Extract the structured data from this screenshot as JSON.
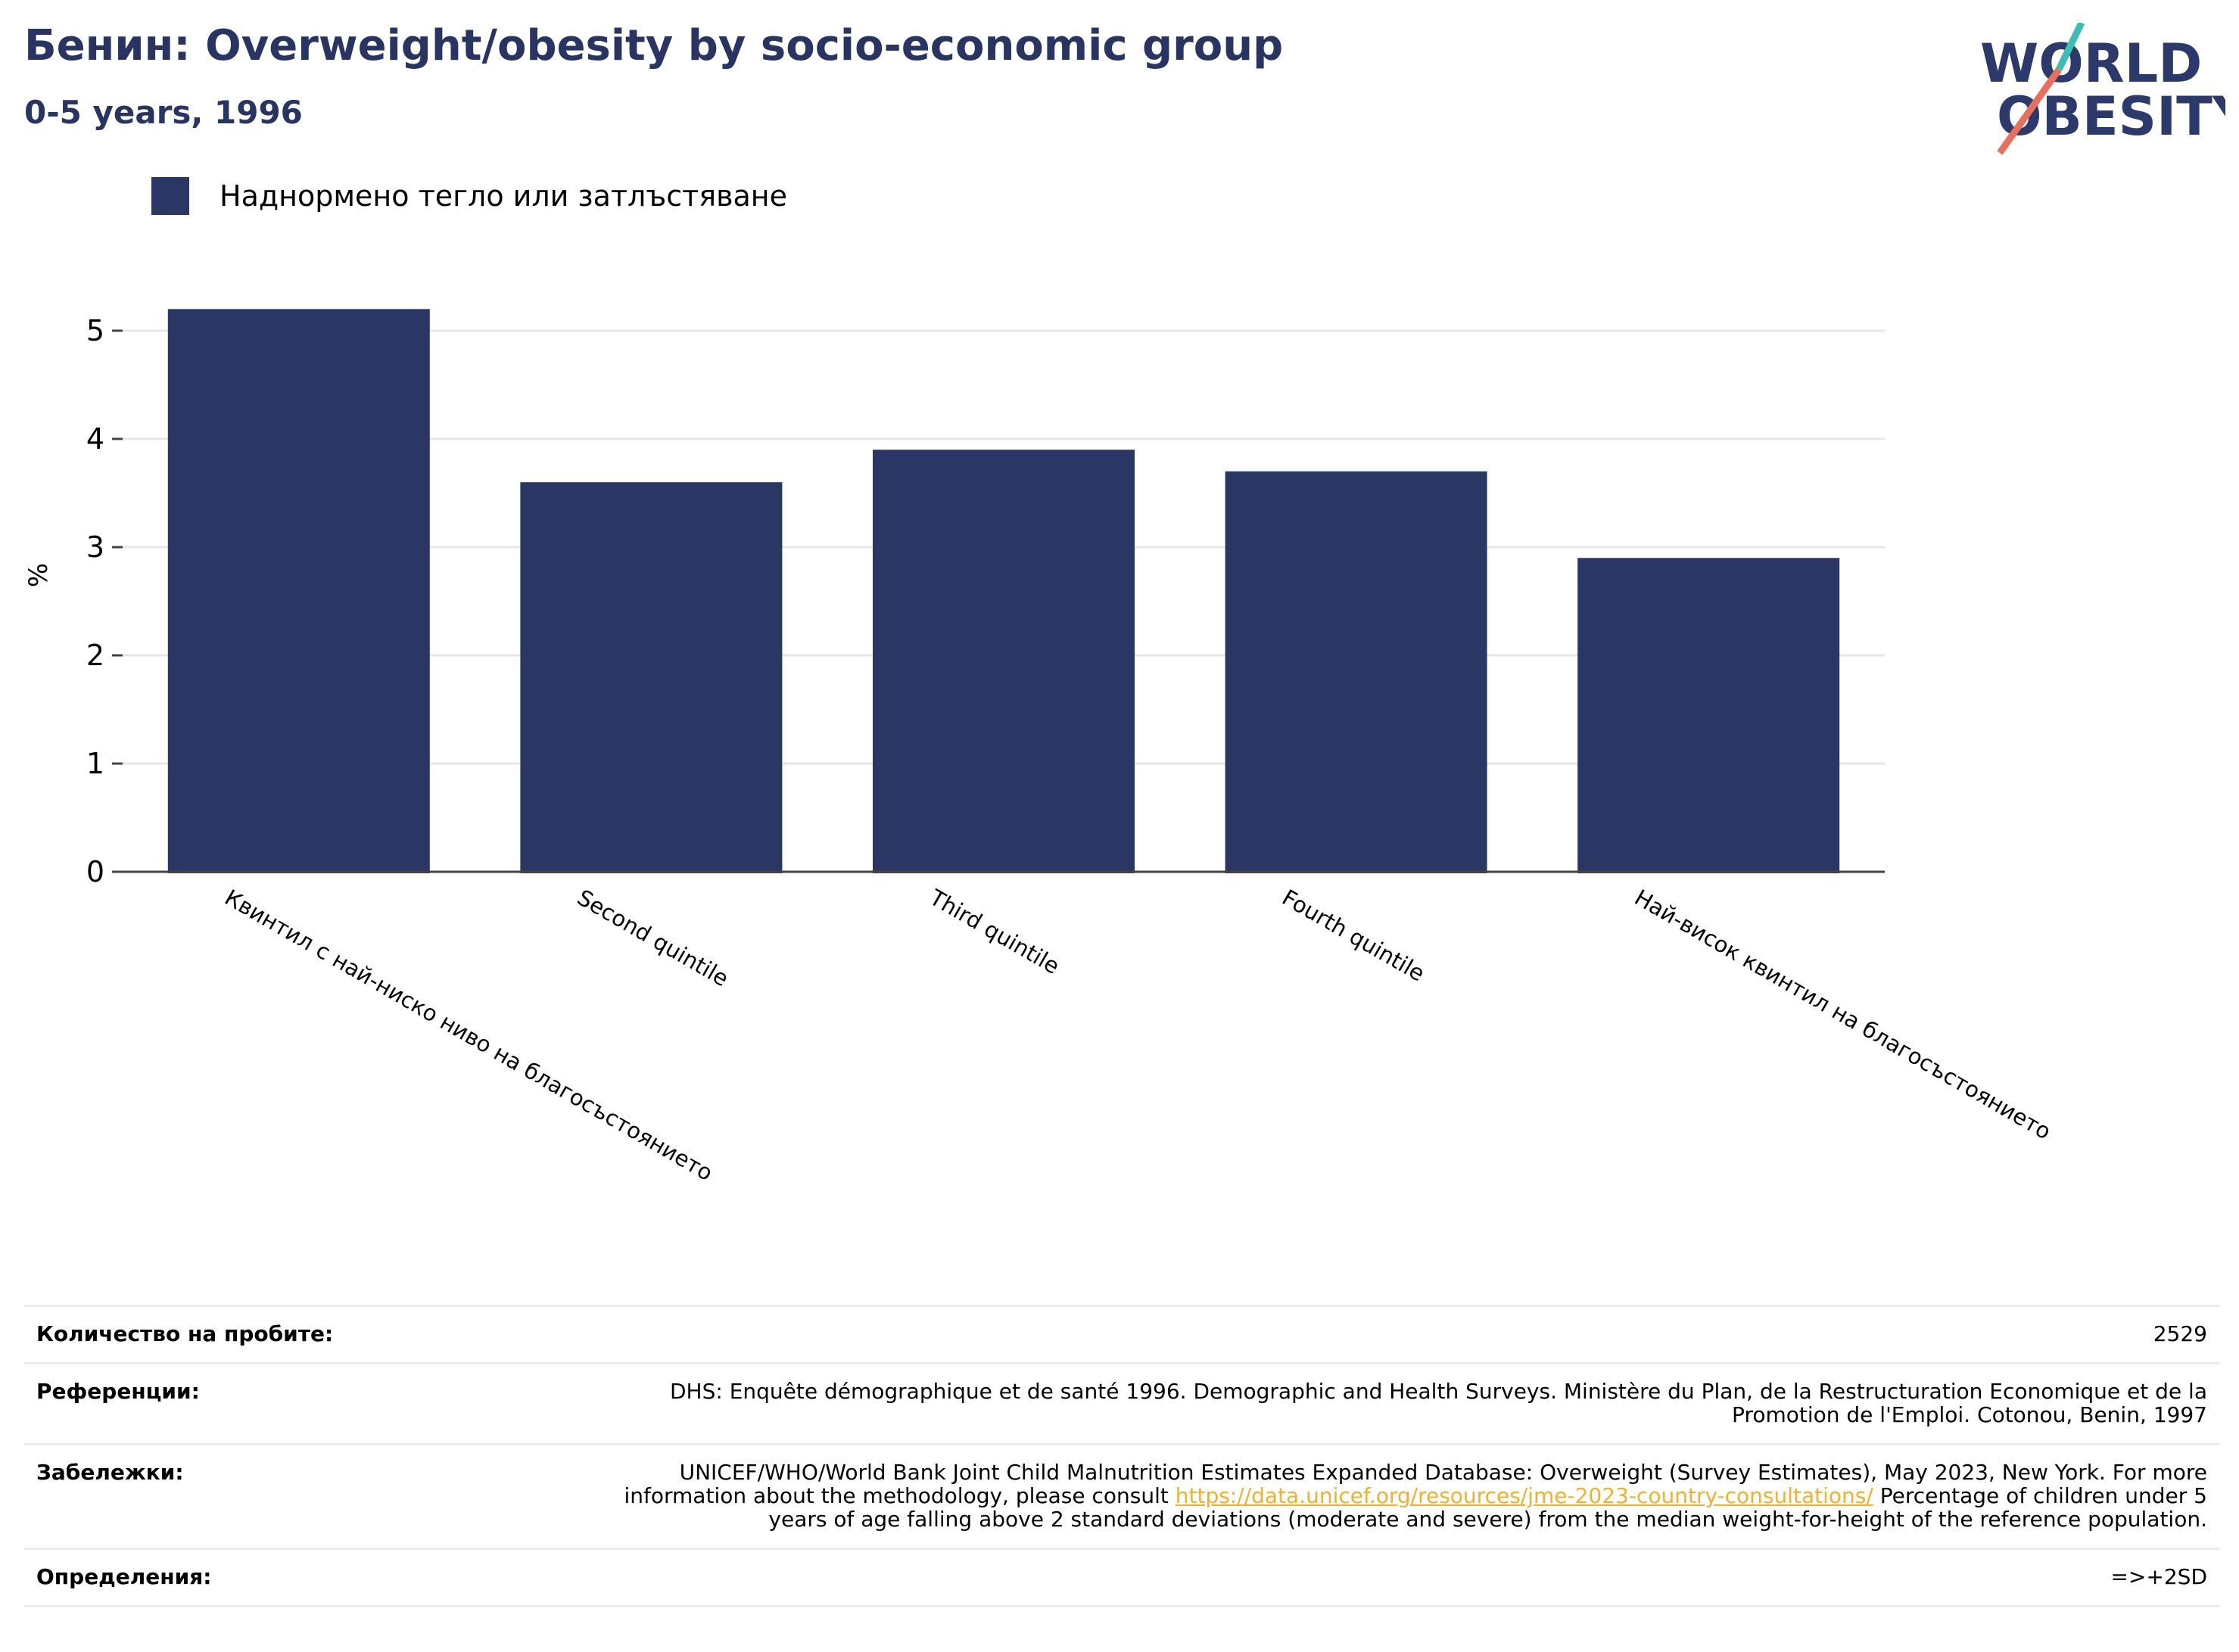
{
  "header": {
    "title": "Бенин: Overweight/obesity by socio-economic group",
    "subtitle": "0-5 years, 1996"
  },
  "logo": {
    "line1": "WORLD",
    "line2": "OBESITY",
    "colors": [
      "#2b3a6b",
      "#e8705a",
      "#3bbfb5"
    ]
  },
  "legend": {
    "label": "Наднормено тегло или затлъстяване",
    "color": "#2a3663"
  },
  "chart_data": {
    "type": "bar",
    "categories": [
      "Квинтил с най-ниско ниво на благосъстоянието",
      "Second quintile",
      "Third quintile",
      "Fourth quintile",
      "Най-висок квинтил на благосъстоянието"
    ],
    "series": [
      {
        "name": "Наднормено тегло или затлъстяване",
        "values": [
          5.2,
          3.6,
          3.9,
          3.7,
          2.9
        ]
      }
    ],
    "ylabel": "%",
    "ylim": [
      0,
      5.5
    ],
    "yticks": [
      0,
      1,
      2,
      3,
      4,
      5
    ],
    "grid": true,
    "color": "#2a3663"
  },
  "info": {
    "rows": [
      {
        "key": "Количество на пробите:",
        "value": "2529"
      },
      {
        "key": "Референции:",
        "value": "DHS: Enquête démographique et de santé 1996. Demographic and Health Surveys. Ministère du Plan, de la Restructuration Economique et de la Promotion de l'Emploi. Cotonou, Benin, 1997"
      },
      {
        "key": "Забележки:",
        "value_before": "UNICEF/WHO/World Bank Joint Child Malnutrition Estimates Expanded Database: Overweight (Survey Estimates), May 2023, New York. For more information about the methodology, please consult ",
        "link": "https://data.unicef.org/resources/jme-2023-country-consultations/",
        "value_after": " Percentage of children under 5 years of age falling above 2 standard deviations (moderate and severe) from the median weight-for-height of the reference population."
      },
      {
        "key": "Определения:",
        "value": "=>+2SD"
      }
    ]
  }
}
